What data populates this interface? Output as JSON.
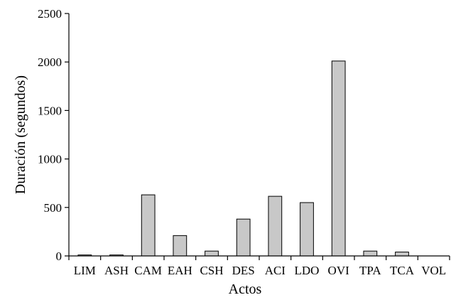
{
  "chart_data": {
    "type": "bar",
    "title": "",
    "xlabel": "Actos",
    "ylabel": "Duración (segundos)",
    "categories": [
      "LIM",
      "ASH",
      "CAM",
      "EAH",
      "CSH",
      "DES",
      "ACI",
      "LDO",
      "OVI",
      "TPA",
      "TCA",
      "VOL"
    ],
    "values": [
      10,
      10,
      630,
      210,
      50,
      380,
      615,
      550,
      2010,
      50,
      40,
      0
    ],
    "ylim": [
      0,
      2500
    ],
    "yticks": [
      0,
      500,
      1000,
      1500,
      2000,
      2500
    ],
    "ytick_labels": [
      "0",
      "500",
      "1000",
      "1500",
      "2000",
      "2500"
    ],
    "grid": false,
    "legend": "none",
    "bar_color": "#c8c8c8",
    "bar_edge_color": "#000000"
  }
}
